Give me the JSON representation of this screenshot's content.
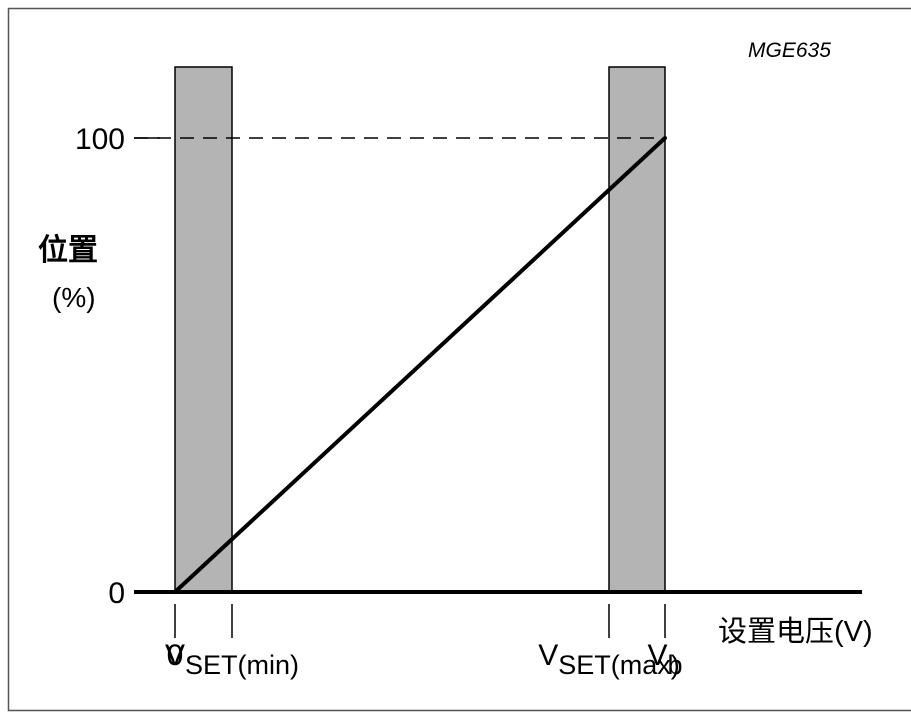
{
  "chart_data": {
    "type": "line",
    "figure_code": "MGE635",
    "ylabel_line1": "位置",
    "ylabel_line2": "(%)",
    "xlabel": "设置电压(V)",
    "ylim": [
      0,
      100
    ],
    "yticks": [
      {
        "value": 0,
        "label": "0"
      },
      {
        "value": 100,
        "label": "100"
      }
    ],
    "xticks": [
      {
        "key": "zero",
        "main": "0",
        "sub": ""
      },
      {
        "key": "vset_min",
        "main": "V",
        "sub": "SET(min)"
      },
      {
        "key": "vset_max",
        "main": "V",
        "sub": "SET(max)"
      },
      {
        "key": "vb",
        "main": "V",
        "sub": "b"
      }
    ],
    "series": [
      {
        "points": [
          {
            "x": "zero",
            "y": 0
          },
          {
            "x": "vb",
            "y": 100
          }
        ]
      }
    ],
    "reference_line": {
      "y": 100,
      "style": "dashed"
    },
    "shaded_bands": [
      {
        "from": "zero",
        "to": "vset_min",
        "color": "#b4b4b4"
      },
      {
        "from": "vset_max",
        "to": "vb",
        "color": "#b4b4b4"
      }
    ],
    "colors": {
      "band": "#b4b4b4",
      "line": "#000000",
      "frame": "#555555"
    }
  }
}
